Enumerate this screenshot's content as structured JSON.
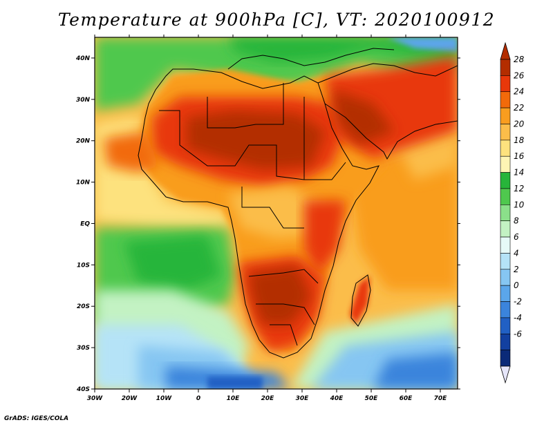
{
  "title": "Temperature at 900hPa [C], VT: 2020100912",
  "footer": "GrADS: IGES/COLA",
  "map": {
    "lon_range": [
      -30,
      75
    ],
    "lat_range": [
      -40,
      45
    ],
    "lon_ticks": [
      "30W",
      "20W",
      "10W",
      "0",
      "10E",
      "20E",
      "30E",
      "40E",
      "50E",
      "60E",
      "70E"
    ],
    "lat_ticks": [
      "40N",
      "30N",
      "20N",
      "10N",
      "EQ",
      "10S",
      "20S",
      "30S",
      "40S"
    ]
  },
  "colorbar": {
    "labels": [
      "28",
      "26",
      "24",
      "22",
      "20",
      "18",
      "16",
      "14",
      "12",
      "10",
      "8",
      "6",
      "4",
      "2",
      "0",
      "-2",
      "-4",
      "-6"
    ],
    "colors": [
      "#b32d00",
      "#e8380a",
      "#f26a0a",
      "#f99d1f",
      "#fbbd4a",
      "#fde27e",
      "#fef5b4",
      "#27b53a",
      "#4fc84e",
      "#8be08a",
      "#c3f2c3",
      "#e6faf7",
      "#b5e3f7",
      "#86c6f2",
      "#5ba6ea",
      "#3b84dc",
      "#2160c4",
      "#1240a0",
      "#0b2a78",
      "#e6e6fa"
    ],
    "top_arrow_color": "#b32d00",
    "bottom_arrow_color": "#e6e6fa"
  }
}
